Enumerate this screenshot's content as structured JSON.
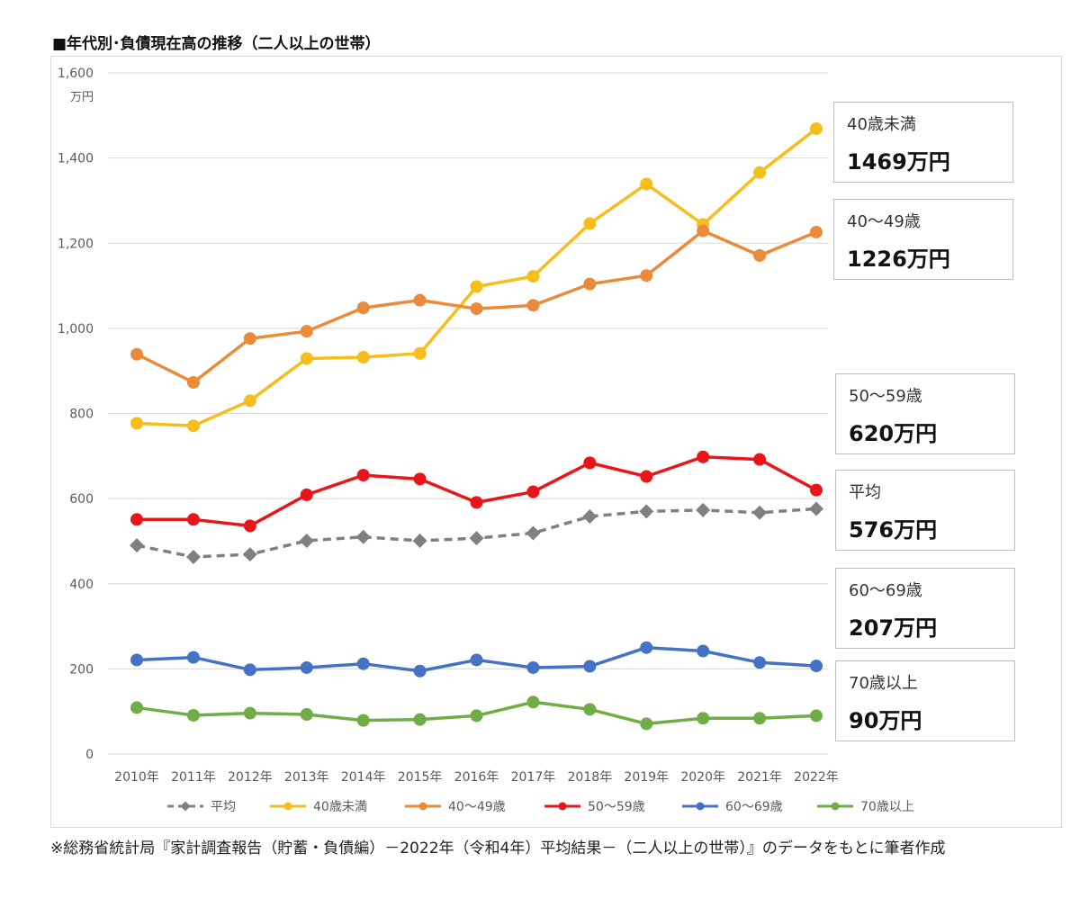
{
  "title": "■年代別･負債現在高の推移（二人以上の世帯）",
  "footer": "※総務省統計局『家計調査報告（貯蓄・負債編）－2022年（令和4年）平均結果－（二人以上の世帯）』のデータをもとに筆者作成",
  "callouts": [
    {
      "name": "40歳未満",
      "value": "1469万円"
    },
    {
      "name": "40～49歳",
      "value": "1226万円"
    },
    {
      "name": "50～59歳",
      "value": "620万円"
    },
    {
      "name": "平均",
      "value": "576万円"
    },
    {
      "name": "60～69歳",
      "value": "207万円"
    },
    {
      "name": "70歳以上",
      "value": "90万円"
    }
  ],
  "chart_data": {
    "type": "line",
    "title": "",
    "ylabel": "万円",
    "ylim": [
      0,
      1600
    ],
    "yticks": [
      "0",
      "200",
      "400",
      "600",
      "800",
      "1,000",
      "1,200",
      "1,400",
      "1,600"
    ],
    "yticks_values": [
      0,
      200,
      400,
      600,
      800,
      1000,
      1200,
      1400,
      1600
    ],
    "grid": true,
    "legend": "bottom",
    "categories": [
      "2010年",
      "2011年",
      "2012年",
      "2013年",
      "2014年",
      "2015年",
      "2016年",
      "2017年",
      "2018年",
      "2019年",
      "2020年",
      "2021年",
      "2022年"
    ],
    "series": [
      {
        "name": "平均",
        "color": "#808080",
        "marker": "diamond",
        "dashed": true,
        "values": [
          490,
          463,
          469,
          501,
          510,
          501,
          507,
          519,
          558,
          570,
          573,
          567,
          576
        ]
      },
      {
        "name": "40歳未満",
        "color": "#F5BE1C",
        "marker": "circle",
        "values": [
          777,
          771,
          830,
          929,
          932,
          941,
          1098,
          1122,
          1246,
          1339,
          1244,
          1366,
          1469
        ]
      },
      {
        "name": "40～49歳",
        "color": "#E98B3A",
        "marker": "circle",
        "values": [
          939,
          873,
          976,
          993,
          1048,
          1066,
          1046,
          1054,
          1104,
          1124,
          1229,
          1171,
          1226
        ]
      },
      {
        "name": "50～59歳",
        "color": "#E8161A",
        "marker": "circle",
        "values": [
          551,
          551,
          536,
          609,
          655,
          646,
          591,
          616,
          684,
          652,
          698,
          692,
          620
        ]
      },
      {
        "name": "60～69歳",
        "color": "#4472C4",
        "marker": "circle",
        "values": [
          221,
          227,
          198,
          203,
          212,
          195,
          221,
          203,
          206,
          250,
          242,
          215,
          207
        ]
      },
      {
        "name": "70歳以上",
        "color": "#70AD47",
        "marker": "circle",
        "values": [
          109,
          91,
          96,
          93,
          79,
          81,
          90,
          122,
          105,
          71,
          84,
          84,
          90
        ]
      }
    ]
  }
}
